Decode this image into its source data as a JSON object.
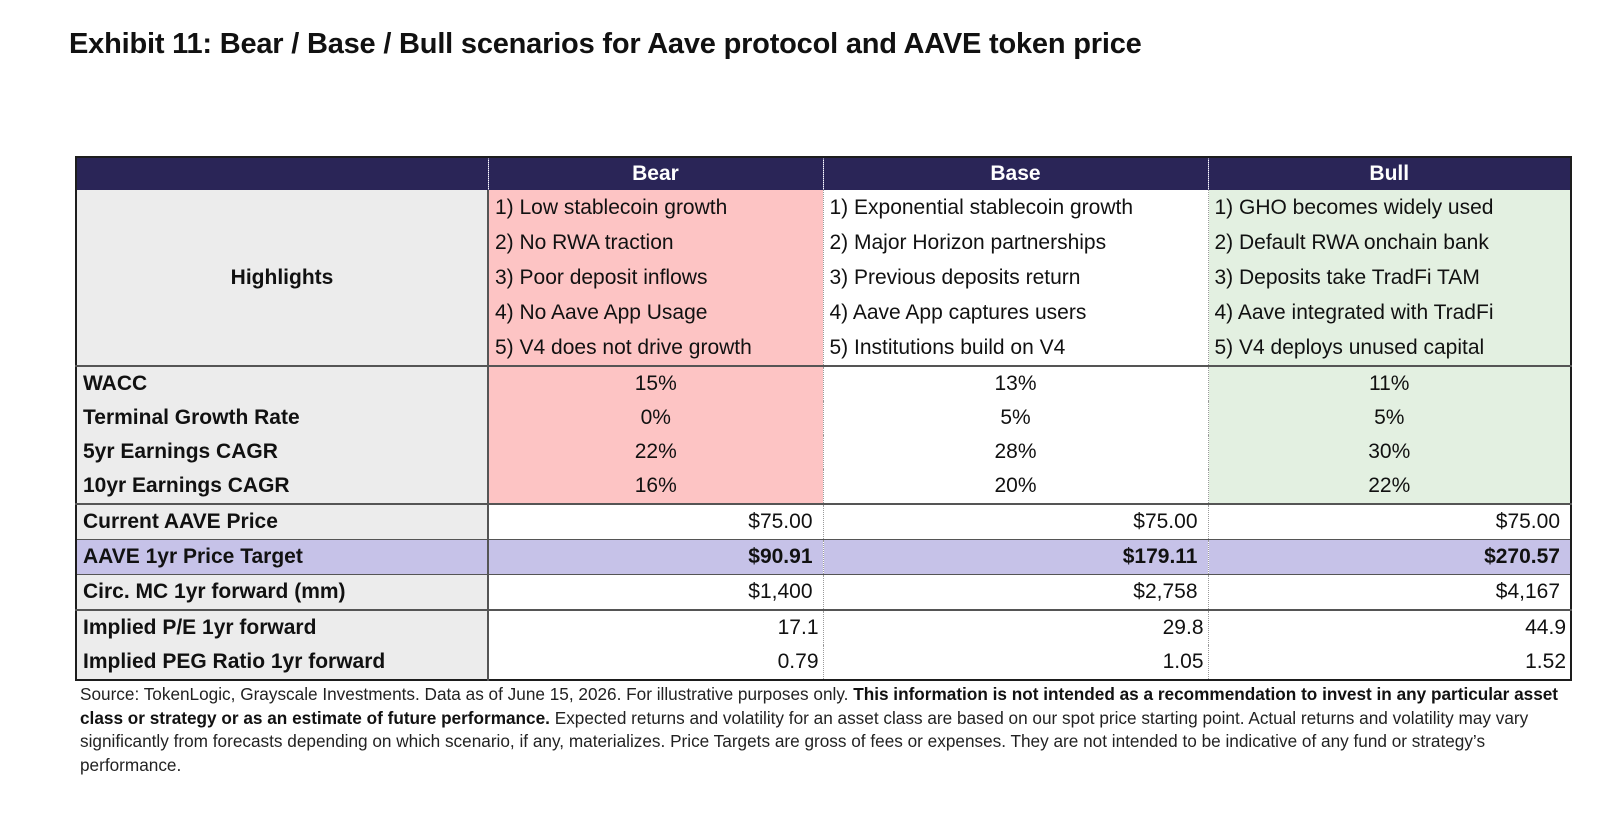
{
  "title": "Exhibit 11: Bear / Base / Bull scenarios for Aave protocol and AAVE token price",
  "table": {
    "columns": [
      "Bear",
      "Base",
      "Bull"
    ],
    "highlights_label": "Highlights",
    "highlights": {
      "bear": [
        "1) Low stablecoin growth",
        "2) No RWA traction",
        "3) Poor deposit inflows",
        "4) No Aave App Usage",
        "5) V4 does not drive growth"
      ],
      "base": [
        "1) Exponential stablecoin growth",
        "2) Major Horizon partnerships",
        "3) Previous deposits return",
        "4) Aave App captures users",
        "5) Institutions build on V4"
      ],
      "bull": [
        "1) GHO becomes widely used",
        "2) Default RWA onchain bank",
        "3) Deposits take TradFi TAM",
        "4) Aave integrated with TradFi",
        "5) V4 deploys unused capital"
      ]
    },
    "rows": [
      {
        "label": "WACC",
        "bear": "15%",
        "base": "13%",
        "bull": "11%"
      },
      {
        "label": "Terminal Growth Rate",
        "bear": "0%",
        "base": "5%",
        "bull": "5%"
      },
      {
        "label": "5yr Earnings CAGR",
        "bear": "22%",
        "base": "28%",
        "bull": "30%"
      },
      {
        "label": "10yr Earnings CAGR",
        "bear": "16%",
        "base": "20%",
        "bull": "22%"
      },
      {
        "label": "Current AAVE Price",
        "bear": "$75.00",
        "base": "$75.00",
        "bull": "$75.00"
      },
      {
        "label": "AAVE 1yr Price Target",
        "bear": "$90.91",
        "base": "$179.11",
        "bull": "$270.57"
      },
      {
        "label": "Circ. MC 1yr forward  (mm)",
        "bear": "$1,400",
        "base": "$2,758",
        "bull": "$4,167"
      },
      {
        "label": "Implied P/E 1yr forward",
        "bear": "17.1",
        "base": "29.8",
        "bull": "44.9"
      },
      {
        "label": "Implied PEG Ratio 1yr forward",
        "bear": "0.79",
        "base": "1.05",
        "bull": "1.52"
      }
    ],
    "colors": {
      "header": "#2a2557",
      "bear": "#fdc4c4",
      "bull": "#e3f0e1",
      "target_row": "#c6c2e8",
      "label_bg": "#ececec"
    }
  },
  "note": {
    "part1": "Source: TokenLogic, Grayscale Investments. Data as of June 15, 2026. For illustrative purposes only. ",
    "bold": "This information is not intended as a recommendation to invest in any particular asset class or strategy or as an estimate of future performance.",
    "part2": " Expected returns and volatility for an asset class are based on our spot price starting point. Actual returns and volatility may vary significantly from forecasts depending on which scenario, if any, materializes. Price Targets are gross of fees or expenses. They are not intended to be indicative of any fund or strategy’s performance."
  }
}
